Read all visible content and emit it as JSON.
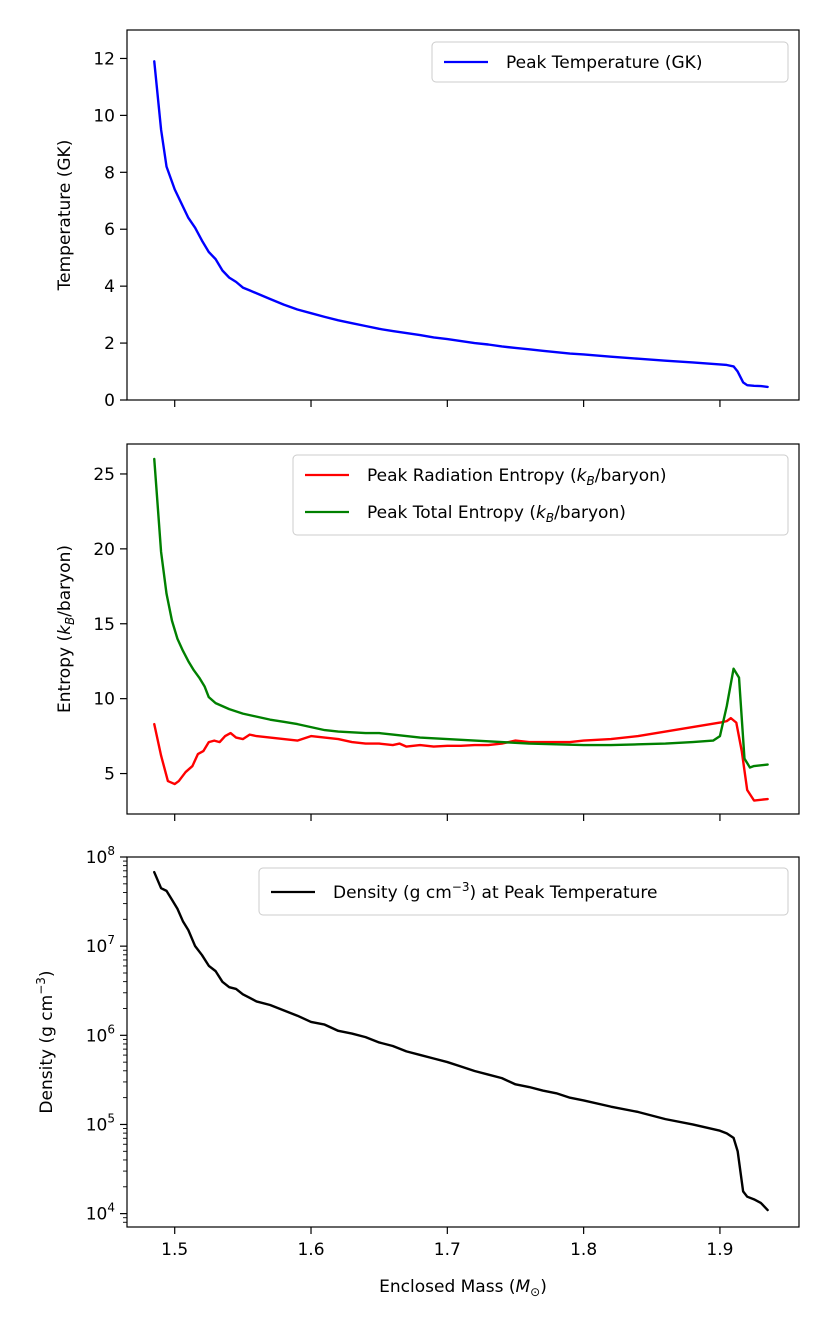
{
  "chart_data": [
    {
      "type": "line",
      "ylabel": "Temperature (GK)",
      "xlim": [
        1.465,
        1.958
      ],
      "ylim": [
        0,
        13
      ],
      "yscale": "linear",
      "yticks": [
        0,
        2,
        4,
        6,
        8,
        10,
        12
      ],
      "ytick_labels": [
        "0",
        "2",
        "4",
        "6",
        "8",
        "10",
        "12"
      ],
      "legend_position": "top-right",
      "series": [
        {
          "name": "Peak Temperature (GK)",
          "color": "#0000ff",
          "x": [
            1.485,
            1.49,
            1.494,
            1.5,
            1.505,
            1.51,
            1.515,
            1.52,
            1.525,
            1.53,
            1.535,
            1.54,
            1.545,
            1.55,
            1.555,
            1.56,
            1.57,
            1.58,
            1.59,
            1.6,
            1.61,
            1.62,
            1.63,
            1.64,
            1.65,
            1.66,
            1.67,
            1.68,
            1.69,
            1.7,
            1.71,
            1.72,
            1.73,
            1.74,
            1.75,
            1.76,
            1.77,
            1.78,
            1.79,
            1.8,
            1.82,
            1.84,
            1.86,
            1.88,
            1.9,
            1.905,
            1.91,
            1.913,
            1.917,
            1.92,
            1.925,
            1.93,
            1.935
          ],
          "values": [
            11.9,
            9.5,
            8.2,
            7.4,
            6.9,
            6.4,
            6.05,
            5.6,
            5.2,
            4.95,
            4.55,
            4.3,
            4.15,
            3.95,
            3.85,
            3.75,
            3.55,
            3.35,
            3.18,
            3.05,
            2.92,
            2.8,
            2.7,
            2.6,
            2.5,
            2.42,
            2.35,
            2.28,
            2.2,
            2.14,
            2.07,
            2.0,
            1.95,
            1.88,
            1.83,
            1.78,
            1.73,
            1.68,
            1.63,
            1.6,
            1.52,
            1.45,
            1.38,
            1.32,
            1.25,
            1.23,
            1.18,
            1.0,
            0.62,
            0.52,
            0.5,
            0.49,
            0.46
          ]
        }
      ]
    },
    {
      "type": "line",
      "ylabel": "Entropy (kB/baryon)",
      "xlim": [
        1.465,
        1.958
      ],
      "ylim": [
        2.3,
        27.0
      ],
      "yscale": "linear",
      "yticks": [
        5,
        10,
        15,
        20,
        25
      ],
      "ytick_labels": [
        "5",
        "10",
        "15",
        "20",
        "25"
      ],
      "legend_position": "top-right",
      "series": [
        {
          "name": "Peak Radiation Entropy (kB/baryon)",
          "color": "#ff0000",
          "x": [
            1.485,
            1.49,
            1.495,
            1.5,
            1.503,
            1.508,
            1.513,
            1.517,
            1.521,
            1.525,
            1.529,
            1.533,
            1.537,
            1.541,
            1.545,
            1.55,
            1.555,
            1.56,
            1.57,
            1.58,
            1.59,
            1.6,
            1.61,
            1.62,
            1.63,
            1.64,
            1.65,
            1.66,
            1.665,
            1.67,
            1.68,
            1.69,
            1.7,
            1.71,
            1.72,
            1.73,
            1.74,
            1.75,
            1.76,
            1.77,
            1.78,
            1.79,
            1.8,
            1.82,
            1.84,
            1.86,
            1.88,
            1.9,
            1.905,
            1.908,
            1.912,
            1.916,
            1.92,
            1.925,
            1.935
          ],
          "values": [
            8.3,
            6.2,
            4.5,
            4.3,
            4.5,
            5.1,
            5.5,
            6.3,
            6.5,
            7.1,
            7.2,
            7.1,
            7.5,
            7.7,
            7.4,
            7.3,
            7.6,
            7.5,
            7.4,
            7.3,
            7.2,
            7.5,
            7.4,
            7.3,
            7.1,
            7.0,
            7.0,
            6.9,
            7.0,
            6.8,
            6.9,
            6.8,
            6.85,
            6.85,
            6.9,
            6.9,
            7.0,
            7.2,
            7.1,
            7.1,
            7.1,
            7.1,
            7.2,
            7.3,
            7.5,
            7.8,
            8.1,
            8.4,
            8.5,
            8.7,
            8.4,
            6.5,
            3.9,
            3.2,
            3.3
          ]
        },
        {
          "name": "Peak Total Entropy (kB/baryon)",
          "color": "#008000",
          "x": [
            1.485,
            1.49,
            1.494,
            1.498,
            1.502,
            1.506,
            1.51,
            1.514,
            1.518,
            1.522,
            1.525,
            1.53,
            1.54,
            1.55,
            1.56,
            1.57,
            1.58,
            1.59,
            1.6,
            1.61,
            1.62,
            1.63,
            1.64,
            1.65,
            1.66,
            1.68,
            1.7,
            1.72,
            1.74,
            1.76,
            1.78,
            1.8,
            1.82,
            1.84,
            1.86,
            1.88,
            1.895,
            1.9,
            1.905,
            1.91,
            1.914,
            1.918,
            1.922,
            1.925,
            1.935
          ],
          "values": [
            26.0,
            19.8,
            17.0,
            15.2,
            14.0,
            13.2,
            12.5,
            11.9,
            11.4,
            10.8,
            10.1,
            9.7,
            9.3,
            9.0,
            8.8,
            8.6,
            8.45,
            8.3,
            8.1,
            7.9,
            7.8,
            7.75,
            7.7,
            7.7,
            7.6,
            7.4,
            7.3,
            7.2,
            7.1,
            7.0,
            6.95,
            6.9,
            6.9,
            6.95,
            7.0,
            7.1,
            7.2,
            7.5,
            9.5,
            12.0,
            11.4,
            6.0,
            5.4,
            5.5,
            5.6
          ]
        }
      ]
    },
    {
      "type": "line",
      "ylabel": "Density (g cm−3)",
      "xlabel": "Enclosed Mass (M⊙)",
      "xlim": [
        1.465,
        1.958
      ],
      "xticks": [
        1.5,
        1.6,
        1.7,
        1.8,
        1.9
      ],
      "xtick_labels": [
        "1.5",
        "1.6",
        "1.7",
        "1.8",
        "1.9"
      ],
      "ylim_log10": [
        3.85,
        8.0
      ],
      "yscale": "log",
      "yticks_exponent": [
        4,
        5,
        6,
        7,
        8
      ],
      "ytick_base": "10",
      "legend_position": "top-right",
      "series": [
        {
          "name": "Density (g cm−3) at Peak Temperature",
          "color": "#000000",
          "x": [
            1.485,
            1.49,
            1.494,
            1.498,
            1.502,
            1.506,
            1.51,
            1.515,
            1.52,
            1.525,
            1.53,
            1.535,
            1.54,
            1.545,
            1.55,
            1.555,
            1.56,
            1.57,
            1.58,
            1.59,
            1.6,
            1.61,
            1.62,
            1.63,
            1.64,
            1.65,
            1.66,
            1.67,
            1.68,
            1.69,
            1.7,
            1.71,
            1.72,
            1.73,
            1.74,
            1.75,
            1.76,
            1.77,
            1.78,
            1.79,
            1.8,
            1.82,
            1.84,
            1.86,
            1.88,
            1.9,
            1.905,
            1.91,
            1.913,
            1.917,
            1.92,
            1.925,
            1.93,
            1.935
          ],
          "log10_values": [
            7.83,
            7.65,
            7.62,
            7.52,
            7.42,
            7.28,
            7.18,
            7.0,
            6.9,
            6.78,
            6.72,
            6.6,
            6.54,
            6.52,
            6.46,
            6.42,
            6.38,
            6.34,
            6.28,
            6.22,
            6.15,
            6.12,
            6.05,
            6.02,
            5.98,
            5.92,
            5.88,
            5.82,
            5.78,
            5.74,
            5.7,
            5.65,
            5.6,
            5.56,
            5.52,
            5.45,
            5.42,
            5.38,
            5.35,
            5.3,
            5.27,
            5.2,
            5.14,
            5.06,
            5.0,
            4.93,
            4.9,
            4.85,
            4.7,
            4.25,
            4.19,
            4.16,
            4.12,
            4.04
          ]
        }
      ]
    }
  ]
}
